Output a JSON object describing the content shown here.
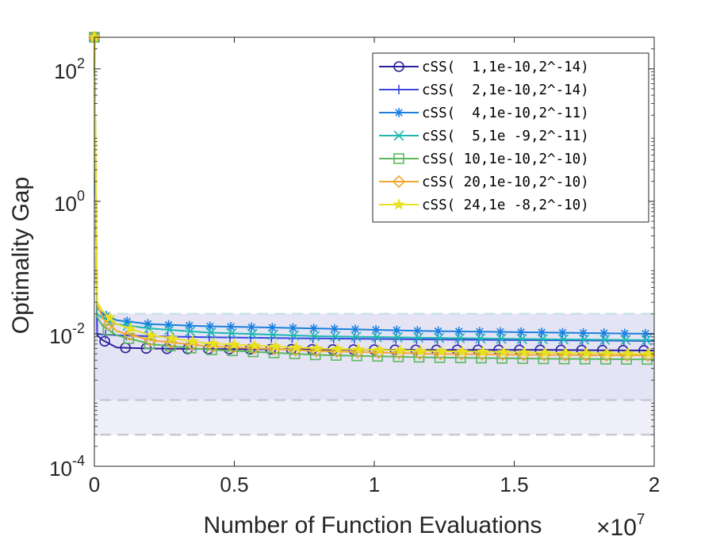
{
  "chart_data": {
    "type": "line",
    "title": "",
    "xlabel": "Number of Function Evaluations",
    "x_multiplier": "×10",
    "x_multiplier_exponent": "7",
    "ylabel": "Optimality Gap",
    "xlim": [
      0,
      20000000
    ],
    "ylim": [
      0.0001,
      300
    ],
    "y_scale": "log",
    "x_ticks": [
      {
        "value": 0,
        "label": "0"
      },
      {
        "value": 5000000,
        "label": "0.5"
      },
      {
        "value": 10000000,
        "label": "1"
      },
      {
        "value": 15000000,
        "label": "1.5"
      },
      {
        "value": 20000000,
        "label": "2"
      }
    ],
    "y_ticks": [
      {
        "value": 0.0001,
        "base": "10",
        "exp": "-4"
      },
      {
        "value": 0.01,
        "base": "10",
        "exp": "-2"
      },
      {
        "value": 1,
        "base": "10",
        "exp": "0"
      },
      {
        "value": 100,
        "base": "10",
        "exp": "2"
      }
    ],
    "grid": false,
    "legend_position": "top-right",
    "shaded_band": {
      "color": "#6060c8",
      "x": [
        0,
        200000,
        20000000
      ],
      "lower": [
        0.0003,
        0.0003,
        0.0003
      ],
      "upper": [
        0.02,
        0.02,
        0.02
      ],
      "inner_lower": [
        0.001,
        0.001,
        0.001
      ]
    },
    "series": [
      {
        "name": "cSS(  1,1e-10,2^-14)",
        "color": "#2a1f9a",
        "marker": "circle",
        "x": [
          0,
          100000,
          300000,
          800000,
          2000000,
          4000000,
          8000000,
          12000000,
          16000000,
          20000000
        ],
        "y": [
          300,
          0.0095,
          0.008,
          0.0062,
          0.006,
          0.0059,
          0.0058,
          0.0057,
          0.0057,
          0.0056
        ]
      },
      {
        "name": "cSS(  2,1e-10,2^-14)",
        "color": "#3a44e0",
        "marker": "plus",
        "x": [
          0,
          100000,
          300000,
          800000,
          2000000,
          4000000,
          8000000,
          12000000,
          16000000,
          20000000
        ],
        "y": [
          300,
          0.01,
          0.0098,
          0.0095,
          0.0092,
          0.0089,
          0.0085,
          0.0082,
          0.008,
          0.0078
        ]
      },
      {
        "name": "cSS(  4,1e-10,2^-11)",
        "color": "#1a80e0",
        "marker": "asterisk",
        "x": [
          0,
          100000,
          300000,
          800000,
          2000000,
          4000000,
          8000000,
          12000000,
          16000000,
          20000000
        ],
        "y": [
          300,
          0.025,
          0.02,
          0.016,
          0.014,
          0.013,
          0.012,
          0.011,
          0.0105,
          0.01
        ]
      },
      {
        "name": "cSS(  5,1e -9,2^-11)",
        "color": "#1cb8b0",
        "marker": "x",
        "x": [
          0,
          100000,
          300000,
          800000,
          2000000,
          4000000,
          8000000,
          12000000,
          16000000,
          20000000
        ],
        "y": [
          300,
          0.02,
          0.017,
          0.014,
          0.012,
          0.0105,
          0.0092,
          0.0087,
          0.0083,
          0.008
        ]
      },
      {
        "name": "cSS( 10,1e-10,2^-10)",
        "color": "#5cb85c",
        "marker": "square",
        "x": [
          0,
          100000,
          300000,
          800000,
          2000000,
          4000000,
          8000000,
          12000000,
          16000000,
          20000000
        ],
        "y": [
          300,
          0.018,
          0.013,
          0.0095,
          0.007,
          0.0058,
          0.0048,
          0.0044,
          0.0042,
          0.0041
        ]
      },
      {
        "name": "cSS( 20,1e-10,2^-10)",
        "color": "#f0a830",
        "marker": "diamond",
        "x": [
          0,
          100000,
          300000,
          800000,
          2000000,
          4000000,
          8000000,
          12000000,
          16000000,
          20000000
        ],
        "y": [
          300,
          0.028,
          0.017,
          0.011,
          0.008,
          0.0065,
          0.0055,
          0.005,
          0.0048,
          0.0047
        ]
      },
      {
        "name": "cSS( 24,1e -8,2^-10)",
        "color": "#e8e020",
        "marker": "star",
        "x": [
          0,
          100000,
          300000,
          800000,
          2000000,
          4000000,
          8000000,
          12000000,
          16000000,
          20000000
        ],
        "y": [
          300,
          0.03,
          0.022,
          0.014,
          0.0095,
          0.0072,
          0.006,
          0.0055,
          0.0052,
          0.005
        ]
      }
    ]
  }
}
